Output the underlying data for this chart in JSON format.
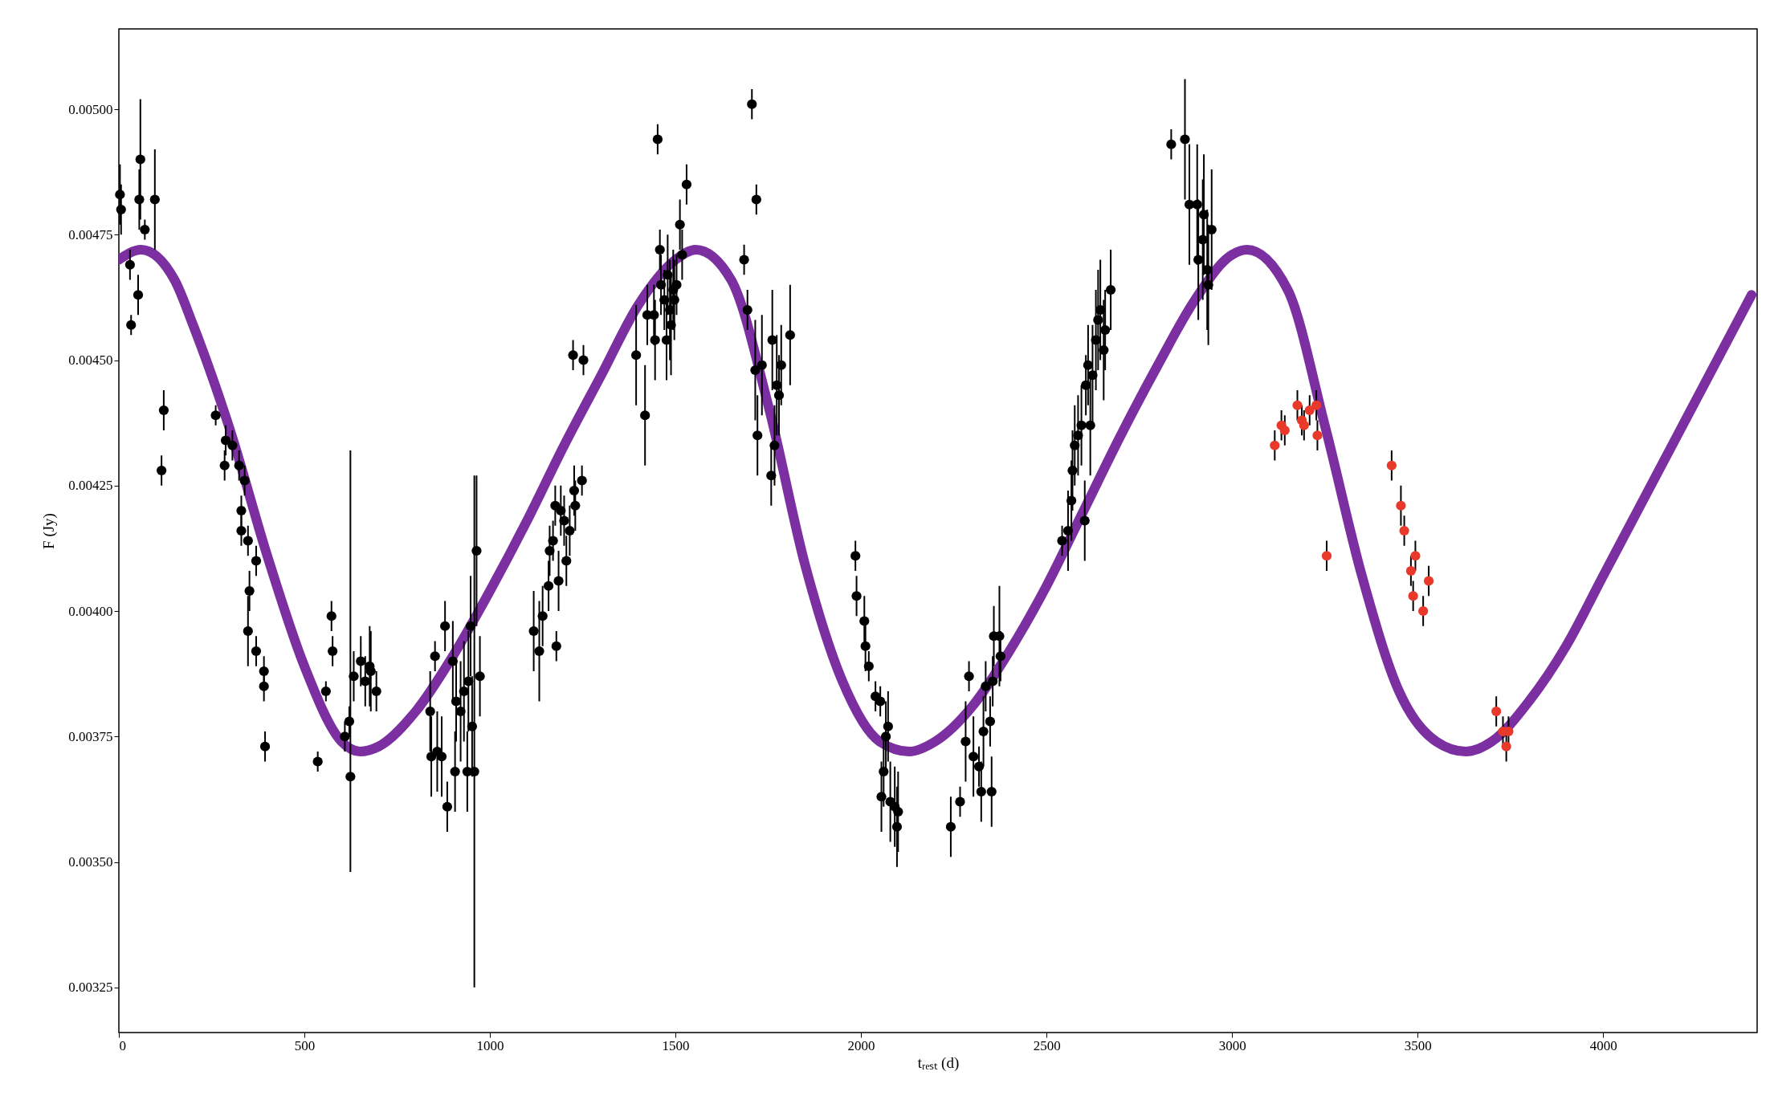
{
  "chart_data": {
    "type": "scatter",
    "xlabel": "tᵣₑₛₜ (d)",
    "ylabel": "F (Jy)",
    "xlim": [
      0,
      4415
    ],
    "ylim": [
      0.00316,
      0.00516
    ],
    "xticks": [
      0,
      500,
      1000,
      1500,
      2000,
      2500,
      3000,
      3500,
      4000
    ],
    "yticks": [
      {
        "value": 0.00325,
        "label": "0.00325"
      },
      {
        "value": 0.0035,
        "label": "0.00350"
      },
      {
        "value": 0.00375,
        "label": "0.00375"
      },
      {
        "value": 0.004,
        "label": "0.00400"
      },
      {
        "value": 0.00425,
        "label": "0.00425"
      },
      {
        "value": 0.0045,
        "label": "0.00450"
      },
      {
        "value": 0.00475,
        "label": "0.00475"
      },
      {
        "value": 0.005,
        "label": "0.00500"
      }
    ],
    "grid": false,
    "marker": "circle",
    "series": [
      {
        "type": "line",
        "marker": "none",
        "color": "#7b2fa0",
        "x": [
          0,
          60,
          150,
          200,
          300,
          400,
          500,
          600,
          650,
          700,
          800,
          900,
          1000,
          1100,
          1200,
          1300,
          1400,
          1500,
          1555,
          1650,
          1750,
          1850,
          1950,
          2050,
          2130,
          2200,
          2300,
          2400,
          2500,
          2600,
          2700,
          2800,
          2900,
          3000,
          3040,
          3150,
          3250,
          3350,
          3450,
          3550,
          3630,
          3700,
          3800,
          3900,
          4000,
          4100,
          4200,
          4300,
          4400
        ],
        "values": [
          0.0047,
          0.00472,
          0.00466,
          0.00457,
          0.00436,
          0.00411,
          0.00389,
          0.00374,
          0.00372,
          0.00373,
          0.0038,
          0.00391,
          0.00404,
          0.00418,
          0.00433,
          0.00447,
          0.00461,
          0.0047,
          0.00472,
          0.00466,
          0.00441,
          0.00409,
          0.00386,
          0.00374,
          0.00372,
          0.00374,
          0.00381,
          0.00392,
          0.00405,
          0.0042,
          0.00435,
          0.00449,
          0.00462,
          0.00471,
          0.00472,
          0.00464,
          0.00437,
          0.00407,
          0.00384,
          0.00374,
          0.00372,
          0.00374,
          0.00382,
          0.00393,
          0.00407,
          0.00421,
          0.00435,
          0.00449,
          0.00463
        ]
      },
      {
        "color": "#000000",
        "x": [
          3,
          6,
          30,
          33,
          55,
          58,
          52,
          70,
          97,
          121,
          115,
          261,
          285,
          288,
          306,
          324,
          330,
          330,
          339,
          348,
          352,
          348,
          370,
          370,
          391,
          391,
          394,
          536,
          558,
          573,
          576,
          609,
          621,
          624,
          633,
          652,
          664,
          676,
          679,
          694,
          839,
          842,
          852,
          858,
          870,
          879,
          885,
          900,
          909,
          906,
          921,
          930,
          939,
          942,
          948,
          952,
          958,
          964,
          973,
          1118,
          1133,
          1142,
          1158,
          1161,
          1170,
          1176,
          1179,
          1185,
          1191,
          1200,
          1206,
          1215,
          1224,
          1227,
          1230,
          1248,
          1252,
          1394,
          1418,
          1424,
          1442,
          1445,
          1452,
          1461,
          1458,
          1470,
          1476,
          1479,
          1485,
          1488,
          1494,
          1497,
          1503,
          1512,
          1518,
          1530,
          1685,
          1694,
          1706,
          1715,
          1718,
          1721,
          1733,
          1758,
          1761,
          1767,
          1773,
          1779,
          1785,
          1809,
          1985,
          1988,
          2009,
          2012,
          2021,
          2039,
          2052,
          2055,
          2061,
          2067,
          2073,
          2079,
          2091,
          2097,
          2100,
          2242,
          2267,
          2282,
          2291,
          2303,
          2318,
          2324,
          2330,
          2336,
          2348,
          2352,
          2355,
          2358,
          2373,
          2376,
          2542,
          2558,
          2567,
          2570,
          2576,
          2585,
          2594,
          2603,
          2606,
          2612,
          2618,
          2624,
          2633,
          2639,
          2645,
          2654,
          2658,
          2673,
          2836,
          2873,
          2885,
          2906,
          2909,
          2921,
          2924,
          2933,
          2936,
          2945
        ],
        "values": [
          0.00483,
          0.0048,
          0.00469,
          0.00457,
          0.00482,
          0.0049,
          0.00463,
          0.00476,
          0.00482,
          0.0044,
          0.00428,
          0.00439,
          0.00429,
          0.00434,
          0.00433,
          0.00429,
          0.0042,
          0.00416,
          0.00426,
          0.00414,
          0.00404,
          0.00396,
          0.0041,
          0.00392,
          0.00388,
          0.00385,
          0.00373,
          0.0037,
          0.00384,
          0.00399,
          0.00392,
          0.00375,
          0.00378,
          0.00367,
          0.00387,
          0.0039,
          0.00386,
          0.00389,
          0.00388,
          0.00384,
          0.0038,
          0.00371,
          0.00391,
          0.00372,
          0.00371,
          0.00397,
          0.00361,
          0.0039,
          0.00382,
          0.00368,
          0.0038,
          0.00384,
          0.00368,
          0.00386,
          0.00397,
          0.00377,
          0.00368,
          0.00412,
          0.00387,
          0.00396,
          0.00392,
          0.00399,
          0.00405,
          0.00412,
          0.00414,
          0.00421,
          0.00393,
          0.00406,
          0.0042,
          0.00418,
          0.0041,
          0.00416,
          0.00451,
          0.00424,
          0.00421,
          0.00426,
          0.0045,
          0.00451,
          0.00439,
          0.00459,
          0.00459,
          0.00454,
          0.00494,
          0.00465,
          0.00472,
          0.00462,
          0.00454,
          0.00467,
          0.0046,
          0.00457,
          0.00464,
          0.00462,
          0.00465,
          0.00477,
          0.00471,
          0.00485,
          0.0047,
          0.0046,
          0.00501,
          0.00448,
          0.00482,
          0.00435,
          0.00449,
          0.00427,
          0.00454,
          0.00433,
          0.00445,
          0.00443,
          0.00449,
          0.00455,
          0.00411,
          0.00403,
          0.00398,
          0.00393,
          0.00389,
          0.00383,
          0.00382,
          0.00363,
          0.00368,
          0.00375,
          0.00377,
          0.00362,
          0.00361,
          0.00357,
          0.0036,
          0.00357,
          0.00362,
          0.00374,
          0.00387,
          0.00371,
          0.00369,
          0.00364,
          0.00376,
          0.00385,
          0.00378,
          0.00364,
          0.00386,
          0.00395,
          0.00395,
          0.00391,
          0.00414,
          0.00416,
          0.00422,
          0.00428,
          0.00433,
          0.00435,
          0.00437,
          0.00418,
          0.00445,
          0.00449,
          0.00437,
          0.00447,
          0.00454,
          0.00458,
          0.0046,
          0.00452,
          0.00456,
          0.00464,
          0.00493,
          0.00494,
          0.00481,
          0.00481,
          0.0047,
          0.00474,
          0.00479,
          0.00468,
          0.00465,
          0.00476
        ],
        "errors": [
          6e-05,
          5e-05,
          3e-05,
          2e-05,
          6e-05,
          0.00012,
          4e-05,
          2e-05,
          0.0001,
          4e-05,
          3e-05,
          2e-05,
          3e-05,
          3e-05,
          3e-05,
          3e-05,
          3e-05,
          3e-05,
          3e-05,
          3e-05,
          4e-05,
          7e-05,
          3e-05,
          3e-05,
          3e-05,
          3e-05,
          3e-05,
          2e-05,
          2e-05,
          3e-05,
          3e-05,
          3e-05,
          3e-05,
          [
            0.00348,
            0.00432
          ],
          5e-05,
          5e-05,
          5e-05,
          8e-05,
          8e-05,
          4e-05,
          8e-05,
          8e-05,
          3e-05,
          8e-05,
          8e-05,
          5e-05,
          5e-05,
          8e-05,
          8e-05,
          8e-05,
          0.0001,
          0.0001,
          8e-05,
          0.0001,
          0.0001,
          0.0001,
          [
            0.00325,
            0.00427
          ],
          0.00015,
          8e-05,
          8e-05,
          0.0001,
          6e-05,
          5e-05,
          5e-05,
          4e-05,
          4e-05,
          3e-05,
          6e-05,
          5e-05,
          5e-05,
          5e-05,
          5e-05,
          3e-05,
          5e-05,
          5e-05,
          3e-05,
          3e-05,
          0.0001,
          0.0001,
          6e-05,
          6e-05,
          8e-05,
          3e-05,
          6e-05,
          4e-05,
          6e-05,
          8e-05,
          8e-05,
          0.0001,
          0.0001,
          8e-05,
          8e-05,
          6e-05,
          5e-05,
          5e-05,
          4e-05,
          3e-05,
          4e-05,
          3e-05,
          0.0001,
          3e-05,
          8e-05,
          0.0001,
          6e-05,
          0.0001,
          8e-05,
          0.0001,
          8e-05,
          8e-05,
          0.0001,
          3e-05,
          4e-05,
          5e-05,
          5e-05,
          3e-05,
          3e-05,
          3e-05,
          7e-05,
          7e-05,
          7e-05,
          7e-05,
          8e-05,
          8e-05,
          8e-05,
          8e-05,
          6e-05,
          3e-05,
          8e-05,
          3e-05,
          8e-05,
          4e-05,
          6e-05,
          7e-05,
          5e-05,
          5e-05,
          7e-05,
          5e-05,
          6e-05,
          0.0001,
          5e-05,
          3e-05,
          8e-05,
          8e-05,
          8e-05,
          8e-05,
          8e-05,
          8e-05,
          8e-05,
          6e-05,
          8e-05,
          0.0001,
          0.0001,
          0.0001,
          0.0001,
          0.0001,
          0.0001,
          8e-05,
          8e-05,
          3e-05,
          0.00012,
          0.00012,
          0.00012,
          0.00012,
          0.00012,
          0.00012,
          0.00012,
          0.00012,
          0.00012
        ]
      },
      {
        "color": "#e8392b",
        "x": [
          3115,
          3133,
          3142,
          3176,
          3188,
          3194,
          3209,
          3227,
          3230,
          3255,
          3430,
          3455,
          3464,
          3482,
          3494,
          3488,
          3515,
          3530,
          3712,
          3730,
          3745,
          3739
        ],
        "values": [
          0.00433,
          0.00437,
          0.00436,
          0.00441,
          0.00438,
          0.00437,
          0.0044,
          0.00441,
          0.00435,
          0.00411,
          0.00429,
          0.00421,
          0.00416,
          0.00408,
          0.00411,
          0.00403,
          0.004,
          0.00406,
          0.0038,
          0.00376,
          0.00376,
          0.00373
        ],
        "errors": [
          3e-05,
          3e-05,
          3e-05,
          3e-05,
          3e-05,
          3e-05,
          3e-05,
          3e-05,
          3e-05,
          3e-05,
          3e-05,
          4e-05,
          3e-05,
          3e-05,
          3e-05,
          3e-05,
          3e-05,
          3e-05,
          3e-05,
          3e-05,
          3e-05,
          3e-05
        ]
      }
    ]
  }
}
